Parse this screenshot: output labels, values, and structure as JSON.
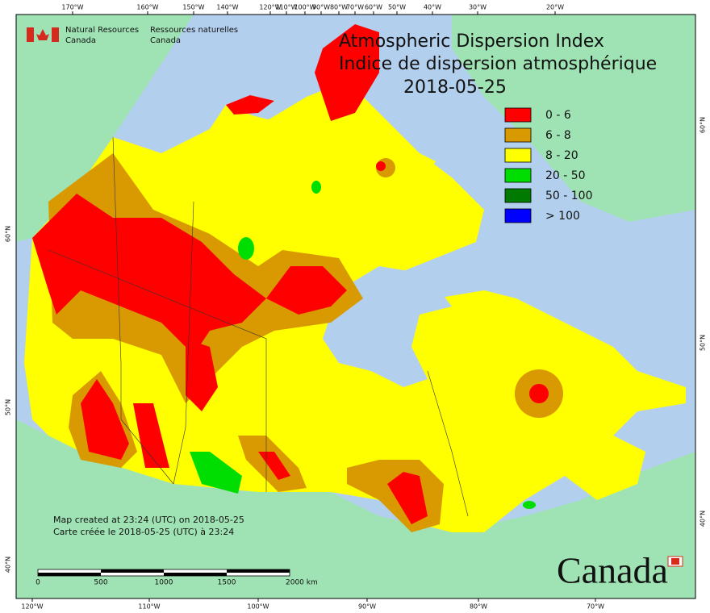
{
  "axes": {
    "top": [
      "170°W",
      "160°W",
      "150°W",
      "140°W",
      "120°W",
      "110°W",
      "100°W",
      "90°W",
      "80°W",
      "70°W",
      "60°W",
      "50°W",
      "40°W",
      "30°W",
      "20°W"
    ],
    "bottom": [
      "120°W",
      "110°W",
      "100°W",
      "90°W",
      "80°W",
      "70°W"
    ],
    "left": [
      "60°N",
      "50°N",
      "40°N"
    ],
    "right": [
      "60°N",
      "50°N",
      "40°N"
    ]
  },
  "logo": {
    "english": [
      "Natural Resources",
      "Canada"
    ],
    "french": [
      "Ressources naturelles",
      "Canada"
    ]
  },
  "title": [
    "Atmospheric Dispersion Index",
    "Indice de dispersion atmosphérique",
    "2018-05-25"
  ],
  "legend": [
    {
      "label": "0 - 6",
      "color": "#ff0000"
    },
    {
      "label": "6 - 8",
      "color": "#d89a00"
    },
    {
      "label": "8 - 20",
      "color": "#ffff00"
    },
    {
      "label": "20 - 50",
      "color": "#00dd00"
    },
    {
      "label": "50 - 100",
      "color": "#007a00"
    },
    {
      "label": "> 100",
      "color": "#0000ff"
    }
  ],
  "notes": [
    "Map created at 23:24 (UTC) on 2018-05-25",
    "Carte créée le 2018-05-25 (UTC) à 23:24"
  ],
  "scale_bar": [
    "0",
    "500",
    "1000",
    "1500",
    "2000  km"
  ],
  "wordmark": "Canada"
}
